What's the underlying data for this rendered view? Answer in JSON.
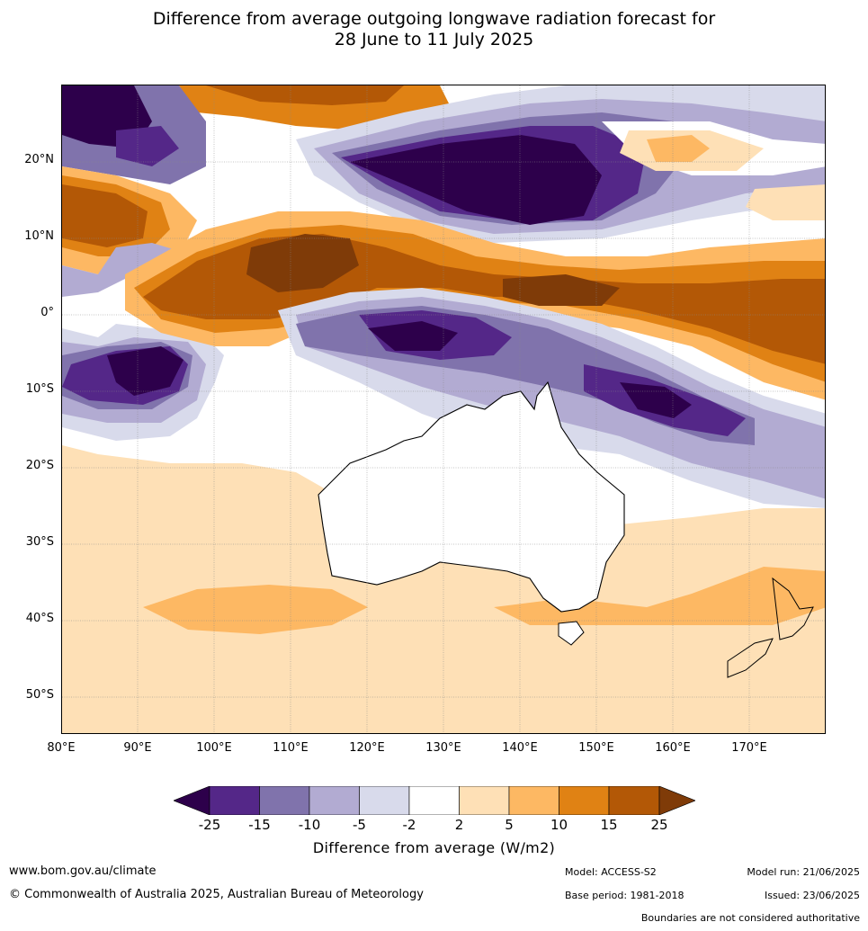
{
  "title_line1": "Difference from average outgoing longwave radiation forecast for",
  "title_line2": "28 June to 11 July 2025",
  "lat_labels": [
    "20°N",
    "10°N",
    "0°",
    "10°S",
    "20°S",
    "30°S",
    "40°S",
    "50°S"
  ],
  "lon_labels": [
    "80°E",
    "90°E",
    "100°E",
    "110°E",
    "120°E",
    "130°E",
    "140°E",
    "150°E",
    "160°E",
    "170°E"
  ],
  "colorbar": {
    "ticks": [
      "-25",
      "-15",
      "-10",
      "-5",
      "-2",
      "2",
      "5",
      "10",
      "15",
      "25"
    ],
    "label": "Difference from average (W/m2)",
    "colors": {
      "lt_-25": "#2d004b",
      "-25_-15": "#542788",
      "-15_-10": "#8073ac",
      "-10_-5": "#b2abd2",
      "-5_-2": "#d8daeb",
      "-2_2": "#ffffff",
      "2_5": "#fee0b6",
      "5_10": "#fdb863",
      "10_15": "#e08214",
      "15_25": "#b35806",
      "gt_25": "#7f3b08"
    }
  },
  "footer": {
    "url": "www.bom.gov.au/climate",
    "copyright": "© Commonwealth of Australia 2025, Australian Bureau of Meteorology",
    "model": "Model: ACCESS-S2",
    "base_period": "Base period: 1981-2018",
    "model_run": "Model run: 21/06/2025",
    "issued": "Issued: 23/06/2025",
    "disclaimer": "Boundaries are not considered authoritative"
  }
}
